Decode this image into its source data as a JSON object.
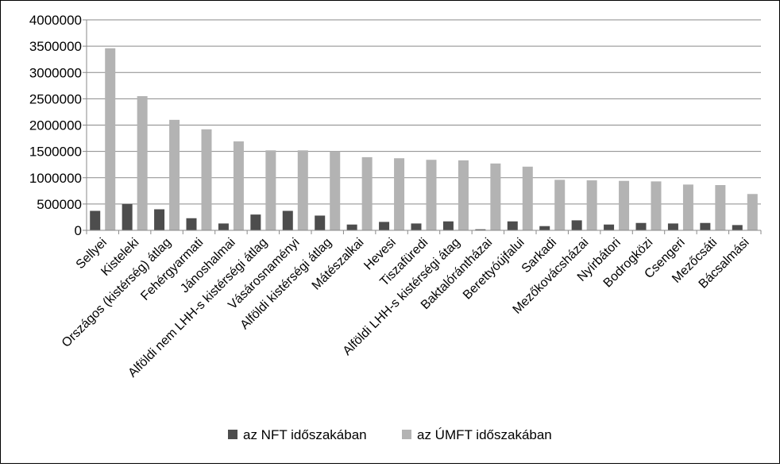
{
  "chart_data": {
    "type": "bar",
    "title": "",
    "xlabel": "",
    "ylabel": "",
    "ylim": [
      0,
      4000000
    ],
    "yticks": [
      "0",
      "500000",
      "1000000",
      "1500000",
      "2000000",
      "2500000",
      "3000000",
      "3500000",
      "4000000"
    ],
    "grid": "horizontal",
    "legend_position": "bottom",
    "categories": [
      "Sellyei",
      "Kisteleki",
      "Országos (kistérség) átlag",
      "Fehérgyarmati",
      "Jánoshalmai",
      "Alföldi nem LHH-s kistérségi átlag",
      "Vásárosnaményi",
      "Alföldi kistérségi átlag",
      "Mátészalkai",
      "Hevesi",
      "Tiszafüredi",
      "Alföldi LHH-s kistérségi átag",
      "Baktalórántházai",
      "Berettyóújfalui",
      "Sarkadi",
      "Mezőkovácsházai",
      "Nyírbátori",
      "Bodrogközi",
      "Csengeri",
      "Mezőcsáti",
      "Bácsalmási"
    ],
    "series": [
      {
        "name": "az NFT időszakában",
        "color": "#4d4d4d",
        "values": [
          370000,
          500000,
          400000,
          230000,
          130000,
          300000,
          370000,
          280000,
          110000,
          160000,
          130000,
          170000,
          20000,
          170000,
          80000,
          190000,
          110000,
          140000,
          130000,
          140000,
          100000
        ]
      },
      {
        "name": "az ÚMFT időszakában",
        "color": "#b3b3b3",
        "values": [
          3460000,
          2550000,
          2100000,
          1920000,
          1690000,
          1520000,
          1520000,
          1500000,
          1390000,
          1370000,
          1340000,
          1330000,
          1270000,
          1210000,
          960000,
          950000,
          940000,
          930000,
          870000,
          860000,
          690000
        ]
      }
    ]
  }
}
